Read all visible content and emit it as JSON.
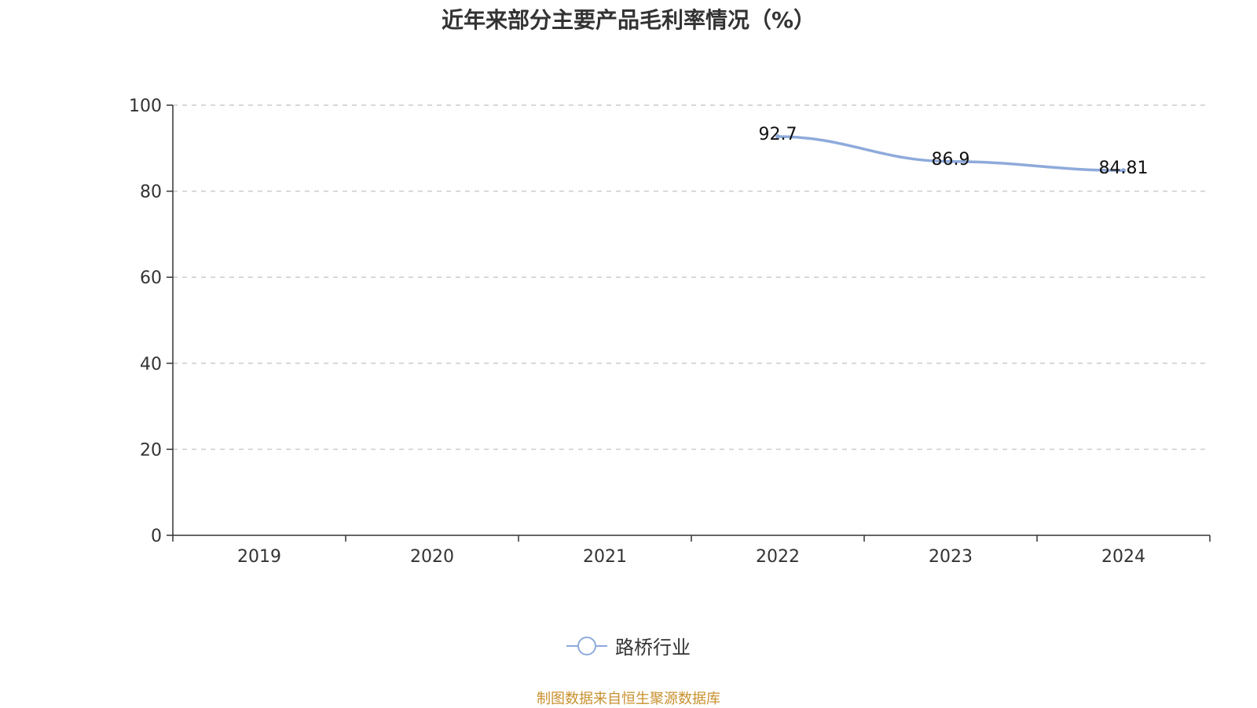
{
  "chart_data": {
    "type": "line",
    "title": "近年来部分主要产品毛利率情况（%）",
    "categories": [
      "2019",
      "2020",
      "2021",
      "2022",
      "2023",
      "2024"
    ],
    "series": [
      {
        "name": "路桥行业",
        "values": [
          null,
          null,
          null,
          92.7,
          86.9,
          84.81
        ],
        "labels": [
          "",
          "",
          "",
          "92.7",
          "86.9",
          "84.81"
        ],
        "color": "#8eaadb"
      }
    ],
    "ylim": [
      0,
      100
    ],
    "yticks": [
      "0",
      "20",
      "40",
      "60",
      "80",
      "100"
    ],
    "grid": "horizontal dashed",
    "legend_position": "bottom-center"
  },
  "footer": {
    "source": "制图数据来自恒生聚源数据库"
  },
  "colors": {
    "series": "#8eaadb",
    "axis": "#333333",
    "grid": "#cccccc",
    "source": "#c8902e"
  }
}
